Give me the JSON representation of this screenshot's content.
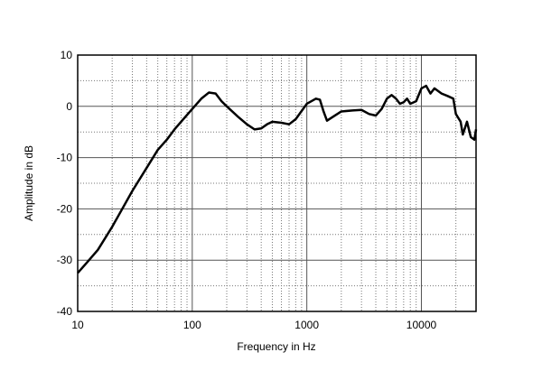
{
  "chart_data": {
    "type": "line",
    "xlabel": "Frequency in Hz",
    "ylabel": "Amplitude in dB",
    "xscale": "log",
    "color": "#000000",
    "grid": true,
    "x": [
      10,
      12,
      15,
      20,
      30,
      40,
      50,
      60,
      70,
      80,
      100,
      120,
      140,
      160,
      180,
      200,
      250,
      300,
      350,
      400,
      450,
      500,
      600,
      700,
      800,
      1000,
      1200,
      1300,
      1400,
      1500,
      1700,
      2000,
      2500,
      3000,
      3500,
      4000,
      4500,
      5000,
      5500,
      6000,
      6500,
      7000,
      7500,
      8000,
      9000,
      10000,
      11000,
      12000,
      13000,
      15000,
      17000,
      19000,
      20000,
      22000,
      23000,
      25000,
      27000,
      29000,
      30000
    ],
    "values": [
      -32.5,
      -30.5,
      -28,
      -23.5,
      -16.5,
      -12,
      -8.5,
      -6.5,
      -4.5,
      -3,
      -0.5,
      1.5,
      2.7,
      2.5,
      1,
      0,
      -2,
      -3.5,
      -4.5,
      -4.3,
      -3.5,
      -3,
      -3.2,
      -3.5,
      -2.5,
      0.5,
      1.5,
      1.3,
      -1,
      -2.8,
      -2,
      -1,
      -0.8,
      -0.7,
      -1.5,
      -1.8,
      -0.5,
      1.5,
      2.2,
      1.5,
      0.5,
      0.8,
      1.5,
      0.5,
      1,
      3.5,
      4,
      2.5,
      3.5,
      2.5,
      2,
      1.5,
      -1.5,
      -3,
      -5.5,
      -3,
      -6,
      -6.5,
      -4.5
    ],
    "xlim": [
      10,
      30000
    ],
    "xticks": [
      10,
      100,
      1000,
      10000
    ],
    "x_minor_grid": [
      20,
      30,
      40,
      50,
      60,
      70,
      80,
      90,
      200,
      300,
      400,
      500,
      600,
      700,
      800,
      900,
      2000,
      3000,
      4000,
      5000,
      6000,
      7000,
      8000,
      9000,
      20000
    ],
    "ylim": [
      -40,
      10
    ],
    "yticks": [
      -40,
      -30,
      -20,
      -10,
      0,
      10
    ],
    "y_minor_grid": [
      -35,
      -25,
      -15,
      -5,
      5
    ]
  }
}
